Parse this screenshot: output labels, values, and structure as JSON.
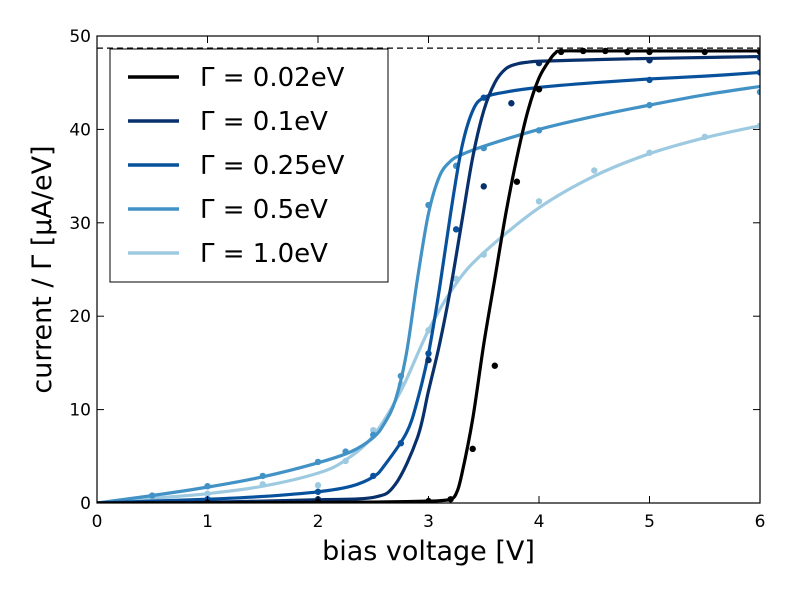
{
  "chart_data": {
    "type": "line",
    "title": "",
    "xlabel": "bias voltage [V]",
    "ylabel": "current / Γ [μA/eV]",
    "xlim": [
      0,
      6
    ],
    "ylim": [
      0,
      50
    ],
    "xticks": [
      0,
      1,
      2,
      3,
      4,
      5,
      6
    ],
    "yticks": [
      0,
      10,
      20,
      30,
      40,
      50
    ],
    "grid": false,
    "legend_position": "top-left",
    "reference_line": {
      "y": 48.7,
      "style": "dashed",
      "color": "#000000"
    },
    "series": [
      {
        "name": "Γ = 0.02eV",
        "color": "#000000",
        "curve_x": [
          0,
          0.5,
          1,
          1.5,
          2,
          2.5,
          2.8,
          3.0,
          3.1,
          3.2,
          3.25,
          3.3,
          3.4,
          3.5,
          3.6,
          3.7,
          3.8,
          3.9,
          4.0,
          4.1,
          4.15,
          4.2,
          4.5,
          5,
          5.5,
          6
        ],
        "curve_y": [
          0,
          0.01,
          0.02,
          0.04,
          0.07,
          0.1,
          0.15,
          0.2,
          0.25,
          0.4,
          1.0,
          3.0,
          9,
          17,
          24,
          31,
          37,
          42,
          45.5,
          47.5,
          48.2,
          48.4,
          48.4,
          48.4,
          48.4,
          48.4
        ],
        "points_x": [
          1.0,
          2.0,
          3.0,
          3.2,
          3.4,
          3.6,
          3.8,
          4.0,
          4.2,
          4.4,
          4.6,
          4.8,
          5.0,
          5.5,
          6.0
        ],
        "points_y": [
          0.0,
          0.1,
          0.2,
          0.4,
          5.8,
          14.7,
          34.4,
          44.3,
          48.3,
          48.4,
          48.4,
          48.3,
          48.3,
          48.3,
          48.3
        ]
      },
      {
        "name": "Γ = 0.1eV",
        "color": "#08306b",
        "curve_x": [
          0,
          0.5,
          1,
          1.5,
          2,
          2.5,
          2.7,
          2.9,
          3.0,
          3.1,
          3.2,
          3.3,
          3.4,
          3.5,
          3.6,
          3.7,
          3.8,
          3.9,
          4.0,
          4.3,
          4.6,
          5,
          5.5,
          6
        ],
        "curve_y": [
          0,
          0.05,
          0.1,
          0.2,
          0.35,
          0.6,
          2.0,
          7,
          12,
          17,
          23,
          30,
          37,
          42,
          45,
          46.5,
          47,
          47.2,
          47.3,
          47.4,
          47.5,
          47.6,
          47.7,
          47.8
        ],
        "points_x": [
          1.0,
          2.0,
          3.0,
          3.5,
          3.75,
          4.0,
          5.0,
          6.0
        ],
        "points_y": [
          0.1,
          0.4,
          15.3,
          33.9,
          42.8,
          47.1,
          47.4,
          47.7
        ]
      },
      {
        "name": "Γ = 0.25eV",
        "color": "#08519c",
        "curve_x": [
          0,
          0.5,
          1,
          1.5,
          2,
          2.3,
          2.5,
          2.6,
          2.8,
          2.9,
          3.0,
          3.1,
          3.2,
          3.3,
          3.4,
          3.5,
          3.7,
          4.0,
          4.5,
          5,
          5.5,
          6
        ],
        "curve_y": [
          0,
          0.2,
          0.4,
          0.7,
          1.2,
          1.8,
          2.8,
          4.0,
          7.5,
          11,
          16,
          23,
          31,
          38,
          42,
          43.4,
          44,
          44.5,
          45,
          45.4,
          45.7,
          46.1
        ],
        "points_x": [
          1.0,
          2.0,
          2.5,
          2.75,
          3.0,
          3.25,
          3.5,
          4.0,
          5.0,
          6.0
        ],
        "points_y": [
          0.4,
          1.2,
          2.9,
          6.4,
          16.0,
          29.3,
          43.4,
          44.3,
          45.3,
          46.1
        ]
      },
      {
        "name": "Γ = 0.5eV",
        "color": "#4292c6",
        "curve_x": [
          0,
          0.5,
          1,
          1.5,
          2,
          2.3,
          2.5,
          2.6,
          2.7,
          2.8,
          2.9,
          3.0,
          3.1,
          3.2,
          3.3,
          3.5,
          4.0,
          4.5,
          5,
          5.5,
          6
        ],
        "curve_y": [
          0,
          0.8,
          1.7,
          2.8,
          4.3,
          5.5,
          7.0,
          8.5,
          11,
          16,
          24,
          31,
          35,
          36.6,
          37.3,
          38.2,
          40,
          41.4,
          42.6,
          43.7,
          44.6
        ],
        "points_x": [
          0.5,
          1.0,
          1.5,
          2.0,
          2.25,
          2.5,
          2.75,
          3.0,
          3.25,
          3.5,
          4.0,
          5.0,
          6.0
        ],
        "points_y": [
          0.8,
          1.8,
          2.9,
          4.4,
          5.5,
          7.3,
          13.6,
          31.9,
          36.1,
          38.0,
          39.9,
          42.6,
          44.0
        ]
      },
      {
        "name": "Γ = 1.0eV",
        "color": "#9ecae1",
        "curve_x": [
          0,
          0.5,
          1,
          1.5,
          2,
          2.25,
          2.5,
          2.75,
          3.0,
          3.25,
          3.5,
          4.0,
          4.5,
          5,
          5.5,
          6
        ],
        "curve_y": [
          0,
          0.5,
          1.0,
          1.8,
          3.2,
          4.6,
          7.2,
          12.0,
          18.5,
          23.5,
          26.8,
          31.6,
          35,
          37.4,
          39.1,
          40.4
        ],
        "points_x": [
          1.0,
          1.5,
          2.0,
          2.25,
          2.5,
          2.75,
          3.0,
          3.25,
          3.5,
          4.0,
          4.5,
          5.0,
          5.5,
          6.0
        ],
        "points_y": [
          1.0,
          2.0,
          1.9,
          4.5,
          7.8,
          12.7,
          18.5,
          24.0,
          26.6,
          32.3,
          35.6,
          37.5,
          39.2,
          40.4
        ]
      }
    ]
  }
}
